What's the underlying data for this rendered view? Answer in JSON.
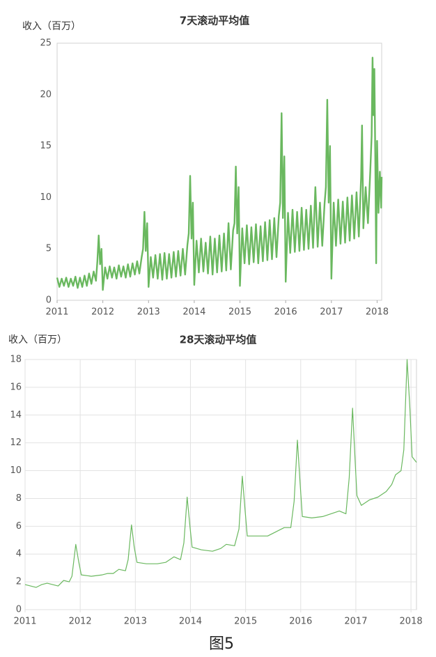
{
  "caption": "图5",
  "chart_data": [
    {
      "type": "line",
      "title": "7天滚动平均值",
      "y_label": "收入（百万）",
      "color": "#6ab85f",
      "grid": false,
      "xlim": [
        2011,
        2018.1
      ],
      "xticks": [
        2011,
        2012,
        2013,
        2014,
        2015,
        2016,
        2017,
        2018
      ],
      "ylim": [
        0,
        25
      ],
      "yticks": [
        0,
        5,
        10,
        15,
        20,
        25
      ],
      "x": [
        2011.0,
        2011.05,
        2011.1,
        2011.15,
        2011.2,
        2011.25,
        2011.3,
        2011.35,
        2011.4,
        2011.45,
        2011.5,
        2011.55,
        2011.6,
        2011.65,
        2011.7,
        2011.75,
        2011.8,
        2011.85,
        2011.88,
        2011.91,
        2011.94,
        2011.97,
        2012.0,
        2012.05,
        2012.1,
        2012.15,
        2012.2,
        2012.25,
        2012.3,
        2012.35,
        2012.4,
        2012.45,
        2012.5,
        2012.55,
        2012.6,
        2012.65,
        2012.7,
        2012.75,
        2012.8,
        2012.85,
        2012.88,
        2012.91,
        2012.94,
        2012.97,
        2013.0,
        2013.05,
        2013.1,
        2013.15,
        2013.2,
        2013.25,
        2013.3,
        2013.35,
        2013.4,
        2013.45,
        2013.5,
        2013.55,
        2013.6,
        2013.65,
        2013.7,
        2013.75,
        2013.8,
        2013.85,
        2013.88,
        2013.91,
        2013.94,
        2013.97,
        2014.0,
        2014.05,
        2014.1,
        2014.15,
        2014.2,
        2014.25,
        2014.3,
        2014.35,
        2014.4,
        2014.45,
        2014.5,
        2014.55,
        2014.6,
        2014.65,
        2014.7,
        2014.75,
        2014.8,
        2014.85,
        2014.88,
        2014.91,
        2014.94,
        2014.97,
        2015.0,
        2015.05,
        2015.1,
        2015.15,
        2015.2,
        2015.25,
        2015.3,
        2015.35,
        2015.4,
        2015.45,
        2015.5,
        2015.55,
        2015.6,
        2015.65,
        2015.7,
        2015.75,
        2015.8,
        2015.85,
        2015.88,
        2015.91,
        2015.94,
        2015.97,
        2016.0,
        2016.05,
        2016.1,
        2016.15,
        2016.2,
        2016.25,
        2016.3,
        2016.35,
        2016.4,
        2016.45,
        2016.5,
        2016.55,
        2016.6,
        2016.65,
        2016.7,
        2016.75,
        2016.8,
        2016.85,
        2016.88,
        2016.91,
        2016.94,
        2016.97,
        2017.0,
        2017.05,
        2017.1,
        2017.15,
        2017.2,
        2017.25,
        2017.3,
        2017.35,
        2017.4,
        2017.45,
        2017.5,
        2017.55,
        2017.6,
        2017.65,
        2017.67,
        2017.7,
        2017.75,
        2017.8,
        2017.85,
        2017.88,
        2017.9,
        2017.92,
        2017.94,
        2017.96,
        2017.98,
        2018.0,
        2018.03,
        2018.06,
        2018.09,
        2018.1
      ],
      "values": [
        2.2,
        1.3,
        2.1,
        1.4,
        2.2,
        1.3,
        2.1,
        1.4,
        2.3,
        1.2,
        2.2,
        1.3,
        2.4,
        1.4,
        2.6,
        1.6,
        2.8,
        1.9,
        3.8,
        6.3,
        3.5,
        5.0,
        1.0,
        3.2,
        2.1,
        3.3,
        2.2,
        3.2,
        2.1,
        3.4,
        2.3,
        3.3,
        2.2,
        3.5,
        2.3,
        3.6,
        2.5,
        3.8,
        2.6,
        4.2,
        5.0,
        8.6,
        4.8,
        7.5,
        1.3,
        4.2,
        2.2,
        4.4,
        2.1,
        4.5,
        2.0,
        4.6,
        2.1,
        4.5,
        2.2,
        4.7,
        2.3,
        4.8,
        2.4,
        5.0,
        2.5,
        5.4,
        6.5,
        12.1,
        6.0,
        9.5,
        1.5,
        5.8,
        2.7,
        6.0,
        2.8,
        5.6,
        2.6,
        6.2,
        2.5,
        6.0,
        2.7,
        6.3,
        2.8,
        6.5,
        2.9,
        7.5,
        3.0,
        6.8,
        7.5,
        13.0,
        6.5,
        11.0,
        1.4,
        7.0,
        3.6,
        7.3,
        3.5,
        7.1,
        3.7,
        7.4,
        3.6,
        7.2,
        3.8,
        7.6,
        3.9,
        7.8,
        4.0,
        8.0,
        4.2,
        8.2,
        9.5,
        18.2,
        8.0,
        14.0,
        1.8,
        8.5,
        4.6,
        8.8,
        4.7,
        8.6,
        4.8,
        9.0,
        4.9,
        8.8,
        5.0,
        9.2,
        5.1,
        11.0,
        5.2,
        9.5,
        5.3,
        9.4,
        11.0,
        19.5,
        9.5,
        15.0,
        2.1,
        9.5,
        5.3,
        9.8,
        5.5,
        9.6,
        5.6,
        10.0,
        5.8,
        10.2,
        6.0,
        10.5,
        6.2,
        12.0,
        17.0,
        7.0,
        11.0,
        7.5,
        12.5,
        16.0,
        23.6,
        18.0,
        22.5,
        14.0,
        3.6,
        15.5,
        8.5,
        12.5,
        9.0,
        12.0
      ]
    },
    {
      "type": "line",
      "title": "28天滚动平均值",
      "y_label": "收入（百万）",
      "color": "#6ab85f",
      "grid": true,
      "xlim": [
        2011,
        2018.1
      ],
      "xticks": [
        2011,
        2012,
        2013,
        2014,
        2015,
        2016,
        2017,
        2018
      ],
      "ylim": [
        0,
        18
      ],
      "yticks": [
        0,
        2,
        4,
        6,
        8,
        10,
        12,
        14,
        16,
        18
      ],
      "x": [
        2011.0,
        2011.1,
        2011.2,
        2011.3,
        2011.4,
        2011.5,
        2011.6,
        2011.7,
        2011.8,
        2011.85,
        2011.92,
        2011.97,
        2012.02,
        2012.2,
        2012.4,
        2012.5,
        2012.6,
        2012.7,
        2012.82,
        2012.87,
        2012.93,
        2012.98,
        2013.03,
        2013.2,
        2013.4,
        2013.55,
        2013.7,
        2013.82,
        2013.88,
        2013.94,
        2013.99,
        2014.03,
        2014.2,
        2014.4,
        2014.55,
        2014.65,
        2014.8,
        2014.88,
        2014.94,
        2014.99,
        2015.03,
        2015.2,
        2015.4,
        2015.55,
        2015.7,
        2015.82,
        2015.88,
        2015.94,
        2015.99,
        2016.03,
        2016.2,
        2016.4,
        2016.55,
        2016.7,
        2016.82,
        2016.88,
        2016.94,
        2016.99,
        2017.02,
        2017.1,
        2017.25,
        2017.4,
        2017.55,
        2017.65,
        2017.72,
        2017.82,
        2017.87,
        2017.93,
        2017.98,
        2018.02,
        2018.06,
        2018.1
      ],
      "values": [
        1.8,
        1.7,
        1.6,
        1.8,
        1.9,
        1.8,
        1.7,
        2.1,
        2.0,
        2.4,
        4.7,
        3.5,
        2.5,
        2.4,
        2.5,
        2.6,
        2.6,
        2.9,
        2.8,
        3.6,
        6.1,
        4.5,
        3.4,
        3.3,
        3.3,
        3.4,
        3.8,
        3.6,
        4.8,
        8.1,
        6.0,
        4.5,
        4.3,
        4.2,
        4.4,
        4.7,
        4.6,
        5.8,
        9.6,
        7.2,
        5.3,
        5.3,
        5.3,
        5.6,
        5.9,
        5.9,
        7.8,
        12.2,
        9.0,
        6.7,
        6.6,
        6.7,
        6.9,
        7.1,
        6.9,
        9.5,
        14.5,
        10.5,
        8.2,
        7.5,
        7.9,
        8.1,
        8.5,
        9.0,
        9.7,
        10.0,
        11.5,
        18.0,
        14.5,
        11.0,
        10.8,
        10.6
      ]
    }
  ]
}
